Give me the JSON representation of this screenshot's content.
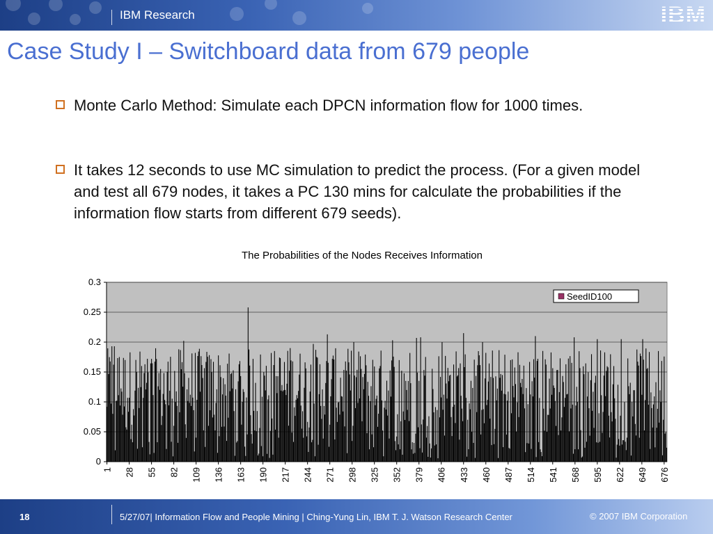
{
  "header": {
    "org_label": "IBM Research",
    "logo_text": "IBM"
  },
  "title": "Case Study I – Switchboard data from 679 people",
  "bullets": [
    "Monte Carlo Method: Simulate each DPCN information flow for 1000 times.",
    "It takes 12 seconds to use MC simulation to predict the process. (For a given model and test all 679 nodes, it takes a PC 130 mins for calculate the probabilities if the information flow starts from different 679 seeds)."
  ],
  "colors": {
    "accent": "#4a6fd1",
    "bullet_box": "#d07020",
    "plot_area": "#c0c0c0",
    "bars": "#000000",
    "legend_swatch": "#993366"
  },
  "chart_data": {
    "type": "bar",
    "title": "The Probabilities of the Nodes Receives Information",
    "xlabel": "",
    "ylabel": "",
    "ylim": [
      0,
      0.3
    ],
    "y_ticks": [
      0,
      0.05,
      0.1,
      0.15,
      0.2,
      0.25,
      0.3
    ],
    "y_tick_labels": [
      "0",
      "0.05",
      "0.1",
      "0.15",
      "0.2",
      "0.25",
      "0.3"
    ],
    "x_count": 679,
    "x_tick_labels": [
      "1",
      "28",
      "55",
      "82",
      "109",
      "136",
      "163",
      "190",
      "217",
      "244",
      "271",
      "298",
      "325",
      "352",
      "379",
      "406",
      "433",
      "460",
      "487",
      "514",
      "541",
      "568",
      "595",
      "622",
      "649",
      "676"
    ],
    "legend_position": "top-right",
    "grid": true,
    "series": [
      {
        "name": "SeedID100",
        "values_note_unused": null,
        "peaks": [
          {
            "x": 7,
            "y": 0.193
          },
          {
            "x": 10,
            "y": 0.193
          },
          {
            "x": 16,
            "y": 0.175
          },
          {
            "x": 43,
            "y": 0.16
          },
          {
            "x": 66,
            "y": 0.155
          },
          {
            "x": 94,
            "y": 0.202
          },
          {
            "x": 172,
            "y": 0.258
          },
          {
            "x": 223,
            "y": 0.19
          },
          {
            "x": 251,
            "y": 0.197
          },
          {
            "x": 268,
            "y": 0.213
          },
          {
            "x": 300,
            "y": 0.2
          },
          {
            "x": 347,
            "y": 0.203
          },
          {
            "x": 376,
            "y": 0.207
          },
          {
            "x": 381,
            "y": 0.208
          },
          {
            "x": 407,
            "y": 0.2
          },
          {
            "x": 433,
            "y": 0.215
          },
          {
            "x": 456,
            "y": 0.2
          },
          {
            "x": 520,
            "y": 0.21
          },
          {
            "x": 567,
            "y": 0.208
          },
          {
            "x": 595,
            "y": 0.205
          },
          {
            "x": 624,
            "y": 0.205
          },
          {
            "x": 650,
            "y": 0.205
          }
        ],
        "baseline_range": [
          0.0,
          0.19
        ]
      }
    ]
  },
  "footer": {
    "page_number": "18",
    "center_text": "5/27/07| Information Flow and People Mining | Ching-Yung Lin, IBM T. J. Watson Research Center",
    "copyright": "© 2007 IBM Corporation"
  }
}
